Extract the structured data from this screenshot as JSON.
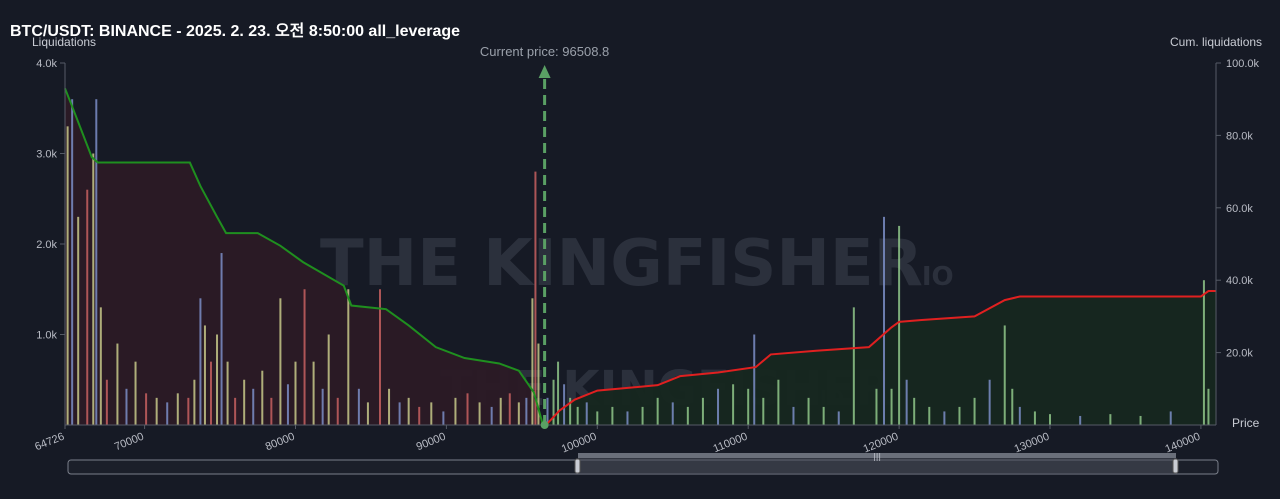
{
  "chart_data": {
    "type": "bar",
    "title": "BTC/USDT: BINANCE - 2025. 2. 23. 오전 8:50:00 all_leverage",
    "ylabel": "Liquidations",
    "y2label": "Cum. liquidations",
    "xlabel": "Price",
    "xlim": [
      64726,
      141000
    ],
    "ylim": [
      0,
      4000
    ],
    "y2lim": [
      0,
      100000
    ],
    "x_ticks": [
      "64726",
      "70000",
      "80000",
      "90000",
      "100000",
      "110000",
      "120000",
      "130000",
      "140000"
    ],
    "y_ticks": [
      "4.0k",
      "3.0k",
      "2.0k",
      "1.0k"
    ],
    "y2_ticks": [
      "100.0k",
      "80.0k",
      "60.0k",
      "40.0k",
      "20.0k"
    ],
    "current_price": {
      "label": "Current price: 96508.8",
      "value": 96508.8
    },
    "watermark": {
      "main": "THE KINGFISHER",
      "suffix": ".IO"
    },
    "colors": {
      "background": "#161a25",
      "long_fill": "#2b1a25",
      "short_fill": "#16271f",
      "long_line": "#1f8f1f",
      "short_line": "#e02020",
      "current_price": "#5aa064",
      "bar_yellow": "#c7c98a",
      "bar_blue": "#7b8ec7",
      "bar_red": "#c76060",
      "bar_green": "#8fc78a"
    },
    "series": [
      {
        "name": "long_cumulative",
        "x": [
          64726,
          65200,
          66500,
          66900,
          69500,
          73000,
          73700,
          74800,
          75400,
          77500,
          79000,
          80500,
          83200,
          83700,
          86000,
          87500,
          89300,
          91200,
          93500,
          94800,
          95800,
          96400
        ],
        "values": [
          93000,
          88000,
          74000,
          72500,
          72500,
          72500,
          66000,
          57500,
          53000,
          53000,
          49500,
          45000,
          38500,
          33000,
          32000,
          27500,
          21500,
          18500,
          17000,
          15000,
          9000,
          0
        ]
      },
      {
        "name": "short_cumulative",
        "x": [
          96600,
          97500,
          98500,
          100000,
          104000,
          105500,
          108000,
          110500,
          111500,
          114500,
          118000,
          119500,
          120000,
          121500,
          125000,
          127000,
          128000,
          140000,
          140500,
          141000
        ],
        "values": [
          0,
          4000,
          7000,
          9500,
          11000,
          13500,
          14500,
          16000,
          19500,
          20500,
          21500,
          27000,
          28500,
          29000,
          30000,
          34500,
          35500,
          35500,
          37000,
          37000
        ]
      }
    ],
    "bars": [
      {
        "x": 64900,
        "value": 3300
      },
      {
        "x": 65200,
        "value": 3600
      },
      {
        "x": 65600,
        "value": 2300
      },
      {
        "x": 66200,
        "value": 2600
      },
      {
        "x": 66600,
        "value": 3000
      },
      {
        "x": 66800,
        "value": 3600
      },
      {
        "x": 67100,
        "value": 1300
      },
      {
        "x": 67500,
        "value": 500
      },
      {
        "x": 68200,
        "value": 900
      },
      {
        "x": 68800,
        "value": 400
      },
      {
        "x": 69400,
        "value": 700
      },
      {
        "x": 70100,
        "value": 350
      },
      {
        "x": 70800,
        "value": 300
      },
      {
        "x": 71500,
        "value": 250
      },
      {
        "x": 72200,
        "value": 350
      },
      {
        "x": 72900,
        "value": 300
      },
      {
        "x": 73300,
        "value": 500
      },
      {
        "x": 73700,
        "value": 1400
      },
      {
        "x": 74000,
        "value": 1100
      },
      {
        "x": 74400,
        "value": 700
      },
      {
        "x": 74800,
        "value": 1000
      },
      {
        "x": 75100,
        "value": 1900
      },
      {
        "x": 75500,
        "value": 700
      },
      {
        "x": 76000,
        "value": 300
      },
      {
        "x": 76600,
        "value": 500
      },
      {
        "x": 77200,
        "value": 400
      },
      {
        "x": 77800,
        "value": 600
      },
      {
        "x": 78400,
        "value": 300
      },
      {
        "x": 79000,
        "value": 1400
      },
      {
        "x": 79500,
        "value": 450
      },
      {
        "x": 80000,
        "value": 700
      },
      {
        "x": 80600,
        "value": 1500
      },
      {
        "x": 81200,
        "value": 700
      },
      {
        "x": 81800,
        "value": 400
      },
      {
        "x": 82200,
        "value": 1000
      },
      {
        "x": 82800,
        "value": 300
      },
      {
        "x": 83500,
        "value": 1500
      },
      {
        "x": 84200,
        "value": 400
      },
      {
        "x": 84800,
        "value": 250
      },
      {
        "x": 85600,
        "value": 1500
      },
      {
        "x": 86200,
        "value": 400
      },
      {
        "x": 86900,
        "value": 250
      },
      {
        "x": 87500,
        "value": 300
      },
      {
        "x": 88200,
        "value": 200
      },
      {
        "x": 89000,
        "value": 250
      },
      {
        "x": 89800,
        "value": 150
      },
      {
        "x": 90600,
        "value": 300
      },
      {
        "x": 91400,
        "value": 350
      },
      {
        "x": 92200,
        "value": 250
      },
      {
        "x": 93000,
        "value": 200
      },
      {
        "x": 93600,
        "value": 300
      },
      {
        "x": 94200,
        "value": 350
      },
      {
        "x": 94800,
        "value": 250
      },
      {
        "x": 95300,
        "value": 300
      },
      {
        "x": 95700,
        "value": 1400
      },
      {
        "x": 95900,
        "value": 2800
      },
      {
        "x": 96100,
        "value": 900
      },
      {
        "x": 96700,
        "value": 300
      },
      {
        "x": 97100,
        "value": 500
      },
      {
        "x": 97400,
        "value": 700
      },
      {
        "x": 97800,
        "value": 450
      },
      {
        "x": 98200,
        "value": 300
      },
      {
        "x": 98700,
        "value": 200
      },
      {
        "x": 99300,
        "value": 250
      },
      {
        "x": 100000,
        "value": 150
      },
      {
        "x": 101000,
        "value": 200
      },
      {
        "x": 102000,
        "value": 150
      },
      {
        "x": 103000,
        "value": 200
      },
      {
        "x": 104000,
        "value": 300
      },
      {
        "x": 105000,
        "value": 250
      },
      {
        "x": 106000,
        "value": 200
      },
      {
        "x": 107000,
        "value": 300
      },
      {
        "x": 108000,
        "value": 400
      },
      {
        "x": 109000,
        "value": 450
      },
      {
        "x": 110000,
        "value": 400
      },
      {
        "x": 110400,
        "value": 1000
      },
      {
        "x": 111000,
        "value": 300
      },
      {
        "x": 112000,
        "value": 500
      },
      {
        "x": 113000,
        "value": 200
      },
      {
        "x": 114000,
        "value": 300
      },
      {
        "x": 115000,
        "value": 200
      },
      {
        "x": 116000,
        "value": 150
      },
      {
        "x": 117000,
        "value": 1300
      },
      {
        "x": 118500,
        "value": 400
      },
      {
        "x": 119000,
        "value": 2300
      },
      {
        "x": 119500,
        "value": 400
      },
      {
        "x": 120000,
        "value": 2200
      },
      {
        "x": 120500,
        "value": 500
      },
      {
        "x": 121000,
        "value": 300
      },
      {
        "x": 122000,
        "value": 200
      },
      {
        "x": 123000,
        "value": 150
      },
      {
        "x": 124000,
        "value": 200
      },
      {
        "x": 125000,
        "value": 300
      },
      {
        "x": 126000,
        "value": 500
      },
      {
        "x": 127000,
        "value": 1100
      },
      {
        "x": 127500,
        "value": 400
      },
      {
        "x": 128000,
        "value": 200
      },
      {
        "x": 129000,
        "value": 150
      },
      {
        "x": 130000,
        "value": 120
      },
      {
        "x": 132000,
        "value": 100
      },
      {
        "x": 134000,
        "value": 120
      },
      {
        "x": 136000,
        "value": 100
      },
      {
        "x": 138000,
        "value": 150
      },
      {
        "x": 140200,
        "value": 1600
      },
      {
        "x": 140500,
        "value": 400
      }
    ],
    "grid": false
  }
}
